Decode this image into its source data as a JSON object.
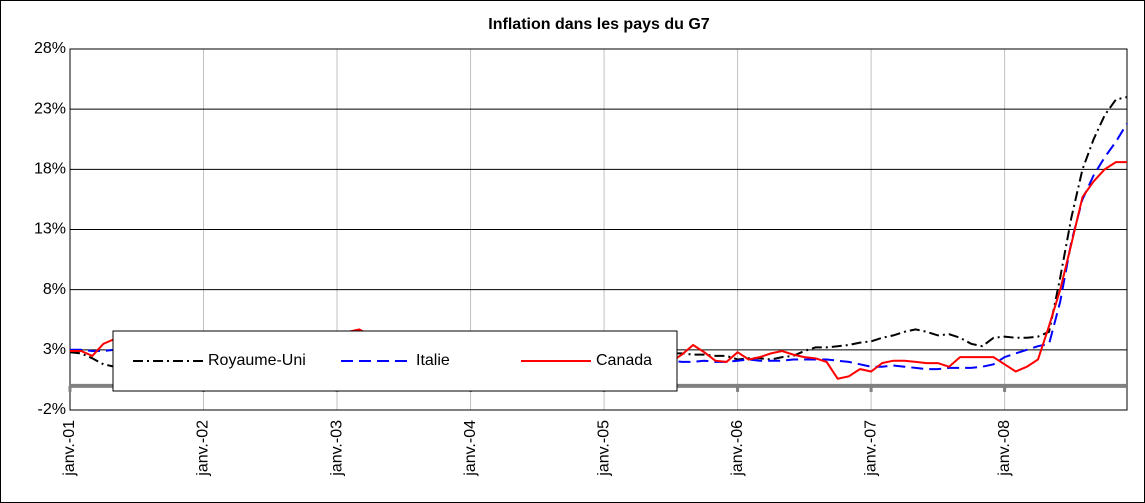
{
  "chart_data": {
    "type": "line",
    "title": "Inflation dans les pays du G7",
    "categories": [
      "janv.-01",
      null,
      null,
      null,
      null,
      null,
      null,
      null,
      null,
      null,
      null,
      null,
      "janv.-02",
      null,
      null,
      null,
      null,
      null,
      null,
      null,
      null,
      null,
      null,
      null,
      "janv.-03",
      null,
      null,
      null,
      null,
      null,
      null,
      null,
      null,
      null,
      null,
      null,
      "janv.-04",
      null,
      null,
      null,
      null,
      null,
      null,
      null,
      null,
      null,
      null,
      null,
      "janv.-05",
      null,
      null,
      null,
      null,
      null,
      null,
      null,
      null,
      null,
      null,
      null,
      "janv.-06",
      null,
      null,
      null,
      null,
      null,
      null,
      null,
      null,
      null,
      null,
      null,
      "janv.-07",
      null,
      null,
      null,
      null,
      null,
      null,
      null,
      null,
      null,
      null,
      null,
      "janv.-08",
      null,
      null,
      null,
      null,
      null,
      null,
      null,
      null,
      null,
      null,
      null
    ],
    "series": [
      {
        "name": "Royaume-Uni",
        "color": "#000000",
        "linestyle": "dashdot",
        "values": [
          2.8,
          2.7,
          2.3,
          1.8,
          1.6,
          1.7,
          1.5,
          1.7,
          1.6,
          1.5,
          1.3,
          1.0,
          1.3,
          1.5,
          1.5,
          1.4,
          1.0,
          1.1,
          1.3,
          1.4,
          1.7,
          2.1,
          2.6,
          2.9,
          2.9,
          3.0,
          3.1,
          3.1,
          2.9,
          2.9,
          3.0,
          2.9,
          2.8,
          2.6,
          2.5,
          2.9,
          2.6,
          2.6,
          2.6,
          2.4,
          2.8,
          2.6,
          2.5,
          2.6,
          2.5,
          2.6,
          2.6,
          2.8,
          2.6,
          2.6,
          2.7,
          2.7,
          2.7,
          2.8,
          2.7,
          2.7,
          2.6,
          2.6,
          2.5,
          2.5,
          2.2,
          2.3,
          2.3,
          2.2,
          2.4,
          2.5,
          2.9,
          3.2,
          3.2,
          3.3,
          3.4,
          3.6,
          3.7,
          4.0,
          4.2,
          4.5,
          4.7,
          4.5,
          4.2,
          4.3,
          4.0,
          3.5,
          3.3,
          4.0,
          4.1,
          4.0,
          4.0,
          4.1,
          4.5,
          9.0,
          14.0,
          18.0,
          20.5,
          22.5,
          23.8,
          24.0
        ]
      },
      {
        "name": "Italie",
        "color": "#0000ff",
        "linestyle": "dashed",
        "values": [
          3.0,
          3.0,
          2.9,
          2.9,
          3.0,
          3.0,
          2.9,
          2.8,
          2.6,
          2.5,
          2.4,
          2.3,
          2.4,
          2.5,
          2.5,
          2.5,
          2.4,
          2.3,
          2.3,
          2.4,
          2.5,
          2.7,
          2.8,
          2.9,
          2.9,
          2.8,
          2.8,
          2.7,
          2.7,
          2.6,
          2.7,
          2.7,
          2.8,
          2.7,
          2.6,
          2.6,
          2.3,
          2.4,
          2.3,
          2.3,
          2.3,
          2.4,
          2.3,
          2.3,
          2.1,
          2.1,
          2.0,
          2.0,
          1.9,
          2.0,
          1.9,
          1.9,
          2.0,
          2.0,
          2.1,
          2.0,
          2.0,
          2.1,
          2.0,
          2.0,
          2.1,
          2.2,
          2.1,
          2.1,
          2.1,
          2.2,
          2.2,
          2.2,
          2.2,
          2.1,
          2.0,
          1.8,
          1.6,
          1.6,
          1.7,
          1.6,
          1.5,
          1.4,
          1.4,
          1.5,
          1.5,
          1.5,
          1.6,
          1.8,
          2.4,
          2.7,
          3.0,
          3.3,
          3.5,
          7.0,
          12.0,
          15.5,
          17.5,
          19.0,
          20.3,
          21.8
        ]
      },
      {
        "name": "Canada",
        "color": "#ff0000",
        "linestyle": "solid",
        "values": [
          2.9,
          2.9,
          2.5,
          3.5,
          3.9,
          3.8,
          3.5,
          3.3,
          3.2,
          3.0,
          2.8,
          2.7,
          2.5,
          2.6,
          2.8,
          3.0,
          3.1,
          3.2,
          3.3,
          3.5,
          3.7,
          3.8,
          4.0,
          3.9,
          4.0,
          4.5,
          4.7,
          4.2,
          3.9,
          3.6,
          3.4,
          3.3,
          3.2,
          3.0,
          2.9,
          2.8,
          2.5,
          2.3,
          2.2,
          2.6,
          2.9,
          2.8,
          2.6,
          2.4,
          2.3,
          2.5,
          2.6,
          2.5,
          2.4,
          2.3,
          2.4,
          2.5,
          2.4,
          2.2,
          2.0,
          2.6,
          3.4,
          2.8,
          2.1,
          2.0,
          2.8,
          2.2,
          2.4,
          2.7,
          2.9,
          2.6,
          2.4,
          2.3,
          2.0,
          0.6,
          0.8,
          1.4,
          1.2,
          1.9,
          2.1,
          2.1,
          2.0,
          1.9,
          1.9,
          1.6,
          2.4,
          2.4,
          2.4,
          2.4,
          1.8,
          1.2,
          1.6,
          2.2,
          5.0,
          8.0,
          11.8,
          15.7,
          17.0,
          18.0,
          18.6,
          18.6
        ]
      }
    ],
    "ylim": [
      -2,
      28
    ],
    "yticks": [
      {
        "value": -2,
        "label": "-2%"
      },
      {
        "value": 3,
        "label": "3%"
      },
      {
        "value": 8,
        "label": "8%"
      },
      {
        "value": 13,
        "label": "13%"
      },
      {
        "value": 18,
        "label": "18%"
      },
      {
        "value": 23,
        "label": "23%"
      },
      {
        "value": 28,
        "label": "28%"
      }
    ],
    "grid": true,
    "legend_loc": "lower center"
  }
}
